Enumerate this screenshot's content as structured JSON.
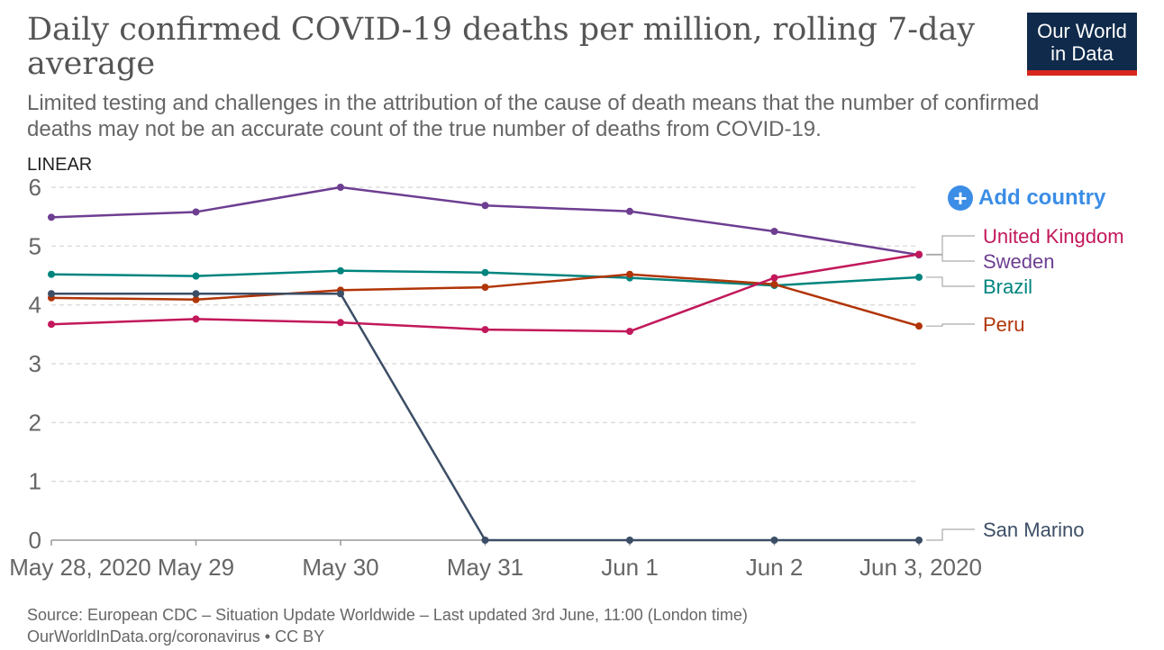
{
  "title": "Daily confirmed COVID-19 deaths per million, rolling 7-day average",
  "subtitle": "Limited testing and challenges in the attribution of the cause of death means that the number of confirmed deaths may not be an accurate count of the true number of deaths from COVID-19.",
  "logo": {
    "line1": "Our World",
    "line2": "in Data"
  },
  "scale_label": "LINEAR",
  "add_country": {
    "icon": "plus-icon",
    "label": "Add country",
    "color": "#3b8de6"
  },
  "footer": {
    "source": "Source: European CDC – Situation Update Worldwide – Last updated 3rd June, 11:00 (London time)",
    "license": "OurWorldInData.org/coronavirus • CC BY"
  },
  "chart_data": {
    "type": "line",
    "x": [
      "May 28, 2020",
      "May 29",
      "May 30",
      "May 31",
      "Jun 1",
      "Jun 2",
      "Jun 3, 2020"
    ],
    "ylim": [
      0,
      6
    ],
    "yticks": [
      0,
      1,
      2,
      3,
      4,
      5,
      6
    ],
    "grid": true,
    "series": [
      {
        "name": "Sweden",
        "color": "#6d3e91",
        "values": [
          5.49,
          5.58,
          6.0,
          5.69,
          5.59,
          5.25,
          4.85
        ]
      },
      {
        "name": "Brazil",
        "color": "#00847e",
        "values": [
          4.52,
          4.49,
          4.58,
          4.55,
          4.46,
          4.33,
          4.47
        ]
      },
      {
        "name": "Peru",
        "color": "#b13507",
        "values": [
          4.12,
          4.09,
          4.25,
          4.3,
          4.52,
          4.35,
          3.64
        ]
      },
      {
        "name": "San Marino",
        "color": "#3c4e66",
        "values": [
          4.19,
          4.19,
          4.19,
          0,
          0,
          0,
          0
        ]
      },
      {
        "name": "United Kingdom",
        "color": "#c2185b",
        "values": [
          3.67,
          3.76,
          3.7,
          3.58,
          3.55,
          4.46,
          4.86
        ]
      }
    ]
  }
}
